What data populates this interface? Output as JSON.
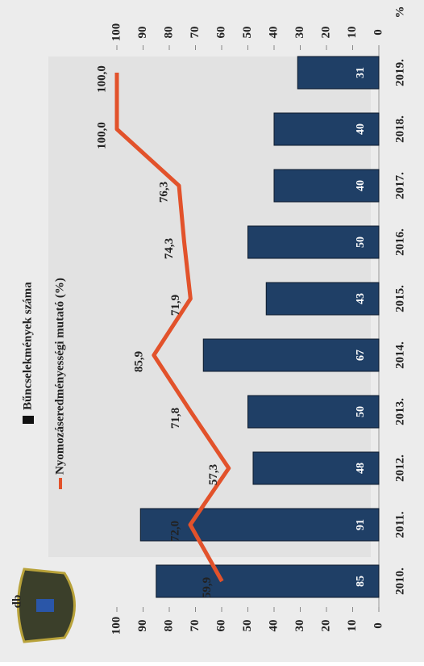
{
  "chart_data": {
    "type": "bar_line",
    "categories": [
      "2010.",
      "2011.",
      "2012.",
      "2013.",
      "2014.",
      "2015.",
      "2016.",
      "2017.",
      "2018.",
      "2019."
    ],
    "series": [
      {
        "name": "Bűncselekmények száma",
        "type": "bar",
        "color": "#1f3f66",
        "values": [
          85,
          91,
          48,
          50,
          67,
          43,
          50,
          40,
          40,
          31
        ]
      },
      {
        "name": "Nyomozáseredményességi mutató (%)",
        "type": "line",
        "axis": "y2",
        "color": "#e2522b",
        "values": [
          59.9,
          72.0,
          57.3,
          71.8,
          85.9,
          71.9,
          74.3,
          76.3,
          100.0,
          100.0
        ],
        "value_labels": [
          "59,9",
          "72,0",
          "57,3",
          "71,8",
          "85,9",
          "71,9",
          "74,3",
          "76,3",
          "100,0",
          "100,0"
        ]
      }
    ],
    "ylabel": "db",
    "ylim": [
      0,
      100
    ],
    "yticks": [
      0,
      10,
      20,
      30,
      40,
      50,
      60,
      70,
      80,
      90,
      100
    ],
    "y2label": "%",
    "y2lim": [
      0,
      100
    ],
    "y2ticks": [
      0,
      10,
      20,
      30,
      40,
      50,
      60,
      70,
      80,
      90,
      100
    ],
    "grid": false
  }
}
